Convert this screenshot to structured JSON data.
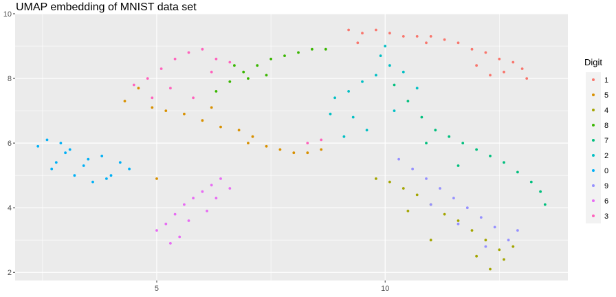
{
  "chart_data": {
    "type": "scatter",
    "title": "UMAP embedding of MNIST data set",
    "xlabel": "",
    "ylabel": "",
    "xlim": [
      1.9,
      14.0
    ],
    "ylim": [
      1.75,
      10.0
    ],
    "x_ticks": [
      5,
      10
    ],
    "x_tick_labels": [
      "5",
      "10"
    ],
    "y_ticks": [
      2,
      4,
      6,
      8,
      10
    ],
    "y_tick_labels": [
      "2",
      "4",
      "6",
      "8",
      "10"
    ],
    "grid": true,
    "legend": {
      "title": "Digit",
      "placement": "right",
      "entries": [
        "1",
        "5",
        "4",
        "8",
        "7",
        "2",
        "0",
        "9",
        "6",
        "3"
      ]
    },
    "series": [
      {
        "name": "1",
        "color": "#F8766D",
        "x": [
          9.2,
          9.5,
          9.8,
          10.1,
          10.4,
          10.7,
          11.0,
          11.3,
          11.6,
          11.9,
          12.2,
          12.5,
          12.8,
          13.0,
          12.6,
          12.3,
          13.1,
          9.4,
          10.9,
          12.0
        ],
        "y": [
          9.5,
          9.4,
          9.5,
          9.4,
          9.3,
          9.3,
          9.3,
          9.2,
          9.1,
          8.9,
          8.8,
          8.6,
          8.5,
          8.3,
          8.2,
          8.1,
          8.0,
          9.1,
          9.1,
          8.4
        ]
      },
      {
        "name": "5",
        "color": "#D89000",
        "x": [
          4.3,
          4.6,
          4.9,
          5.2,
          5.6,
          6.0,
          6.4,
          6.8,
          7.1,
          7.4,
          7.7,
          8.0,
          8.3,
          8.6,
          5.0,
          6.2,
          7.0
        ],
        "y": [
          7.3,
          7.7,
          7.1,
          7.0,
          6.9,
          6.7,
          6.5,
          6.4,
          6.2,
          5.9,
          5.8,
          5.7,
          5.7,
          5.8,
          4.9,
          7.1,
          6.0
        ]
      },
      {
        "name": "4",
        "color": "#A3A500",
        "x": [
          9.8,
          10.1,
          10.4,
          10.7,
          11.0,
          11.3,
          11.6,
          11.9,
          12.2,
          12.5,
          12.8,
          12.6,
          12.3,
          11.0,
          12.0,
          10.5
        ],
        "y": [
          4.9,
          4.8,
          4.6,
          4.4,
          4.1,
          3.8,
          3.6,
          3.3,
          3.0,
          2.7,
          2.8,
          2.4,
          2.1,
          3.0,
          2.5,
          3.9
        ]
      },
      {
        "name": "8",
        "color": "#39B600",
        "x": [
          6.3,
          6.6,
          6.9,
          7.2,
          7.5,
          7.8,
          8.1,
          8.4,
          8.7,
          7.0,
          7.4,
          6.7
        ],
        "y": [
          7.6,
          7.9,
          8.2,
          8.4,
          8.6,
          8.7,
          8.8,
          8.9,
          8.9,
          8.0,
          8.1,
          8.4
        ]
      },
      {
        "name": "7",
        "color": "#00BF7D",
        "x": [
          10.2,
          10.5,
          10.8,
          11.1,
          11.4,
          11.7,
          12.0,
          12.3,
          12.6,
          12.9,
          13.2,
          13.4,
          13.5,
          10.9,
          11.6
        ],
        "y": [
          7.8,
          7.3,
          6.8,
          6.4,
          6.2,
          6.0,
          5.8,
          5.6,
          5.4,
          5.1,
          4.8,
          4.5,
          4.1,
          6.0,
          5.3
        ]
      },
      {
        "name": "2",
        "color": "#00BFC4",
        "x": [
          8.9,
          9.2,
          9.5,
          9.8,
          10.1,
          10.4,
          10.7,
          9.3,
          9.6,
          9.9,
          10.2,
          8.8,
          9.1,
          10.0
        ],
        "y": [
          7.4,
          7.6,
          7.9,
          8.1,
          8.4,
          8.2,
          7.7,
          6.8,
          6.4,
          8.7,
          7.0,
          6.9,
          6.2,
          9.0
        ]
      },
      {
        "name": "0",
        "color": "#00B0F6",
        "x": [
          2.4,
          2.6,
          2.8,
          3.0,
          3.2,
          3.4,
          3.6,
          3.8,
          4.0,
          4.2,
          4.4,
          2.7,
          3.1,
          3.5,
          3.9,
          2.9
        ],
        "y": [
          5.9,
          6.1,
          5.4,
          5.7,
          5.0,
          5.3,
          4.8,
          5.6,
          5.0,
          5.4,
          5.2,
          5.2,
          5.8,
          5.5,
          4.9,
          6.0
        ]
      },
      {
        "name": "9",
        "color": "#9590FF",
        "x": [
          10.3,
          10.6,
          10.9,
          11.2,
          11.5,
          11.8,
          12.1,
          12.4,
          12.7,
          12.9,
          11.0,
          11.6,
          12.2
        ],
        "y": [
          5.5,
          5.2,
          4.9,
          4.6,
          4.3,
          4.0,
          3.7,
          3.4,
          3.0,
          3.3,
          4.1,
          3.5,
          2.8
        ]
      },
      {
        "name": "6",
        "color": "#E76BF3",
        "x": [
          5.0,
          5.2,
          5.4,
          5.6,
          5.8,
          6.0,
          6.2,
          6.4,
          6.6,
          5.3,
          5.7,
          6.1,
          5.5,
          6.3
        ],
        "y": [
          3.3,
          3.5,
          3.8,
          4.1,
          4.3,
          4.5,
          4.7,
          4.9,
          4.6,
          2.9,
          3.6,
          3.9,
          3.1,
          4.3
        ]
      },
      {
        "name": "3",
        "color": "#FF62BC",
        "x": [
          4.5,
          4.8,
          5.1,
          5.4,
          5.7,
          6.0,
          6.3,
          6.6,
          4.9,
          5.3,
          5.8,
          6.2,
          8.3,
          8.6
        ],
        "y": [
          7.8,
          8.0,
          8.3,
          8.6,
          8.8,
          8.9,
          8.6,
          8.5,
          7.4,
          7.7,
          7.4,
          8.2,
          6.0,
          6.1
        ]
      }
    ]
  }
}
